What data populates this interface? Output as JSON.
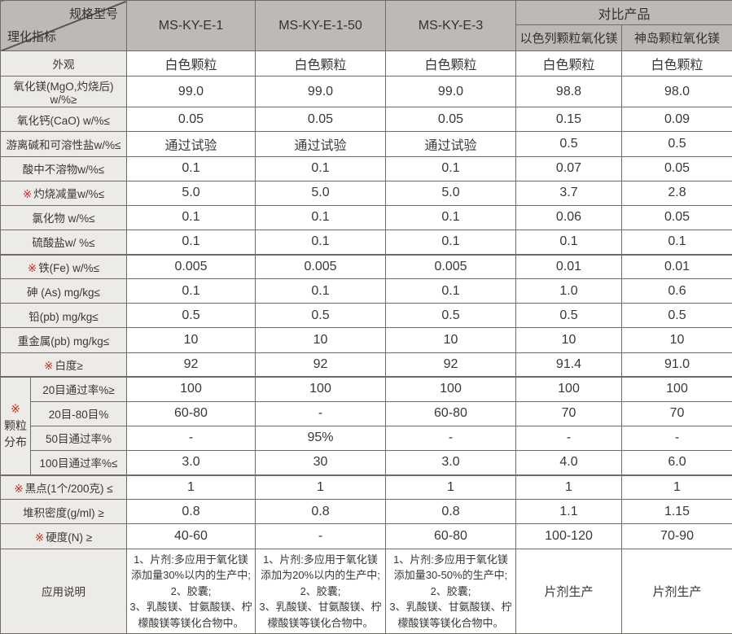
{
  "table": {
    "corner": {
      "top_label": "规格型号",
      "bottom_label": "理化指标"
    },
    "product_columns": [
      "MS-KY-E-1",
      "MS-KY-E-1-50",
      "MS-KY-E-3"
    ],
    "compare_group_label": "对比产品",
    "compare_columns": [
      "以色列颗粒氧化镁",
      "神岛颗粒氧化镁"
    ],
    "granule_group": {
      "marker": "※",
      "lines": [
        "颗粒",
        "分布"
      ]
    },
    "rows": [
      {
        "marker": "",
        "label": "外观",
        "appearance": true,
        "values": [
          "白色颗粒",
          "白色颗粒",
          "白色颗粒",
          "白色颗粒",
          "白色颗粒"
        ]
      },
      {
        "marker": "",
        "label": "氧化镁(MgO,灼烧后) w/%≥",
        "values": [
          "99.0",
          "99.0",
          "99.0",
          "98.8",
          "98.0"
        ]
      },
      {
        "marker": "",
        "label": "氧化钙(CaO) w/%≤",
        "values": [
          "0.05",
          "0.05",
          "0.05",
          "0.15",
          "0.09"
        ]
      },
      {
        "marker": "",
        "label": "游离碱和可溶性盐w/%≤",
        "values": [
          "通过试验",
          "通过试验",
          "通过试验",
          "0.5",
          "0.5"
        ]
      },
      {
        "marker": "",
        "label": "酸中不溶物w/%≤",
        "values": [
          "0.1",
          "0.1",
          "0.1",
          "0.07",
          "0.05"
        ]
      },
      {
        "marker": "※",
        "label": "灼烧减量w/%≤",
        "values": [
          "5.0",
          "5.0",
          "5.0",
          "3.7",
          "2.8"
        ]
      },
      {
        "marker": "",
        "label": "氯化物 w/%≤",
        "values": [
          "0.1",
          "0.1",
          "0.1",
          "0.06",
          "0.05"
        ]
      },
      {
        "marker": "",
        "label": "硫酸盐w/ %≤",
        "values": [
          "0.1",
          "0.1",
          "0.1",
          "0.1",
          "0.1"
        ]
      },
      {
        "marker": "※",
        "label": "铁(Fe) w/%≤",
        "thick_top": true,
        "values": [
          "0.005",
          "0.005",
          "0.005",
          "0.01",
          "0.01"
        ]
      },
      {
        "marker": "",
        "label": "砷 (As) mg/kg≤",
        "values": [
          "0.1",
          "0.1",
          "0.1",
          "1.0",
          "0.6"
        ]
      },
      {
        "marker": "",
        "label": "铅(pb) mg/kg≤",
        "values": [
          "0.5",
          "0.5",
          "0.5",
          "0.5",
          "0.5"
        ]
      },
      {
        "marker": "",
        "label": "重金属(pb) mg/kg≤",
        "values": [
          "10",
          "10",
          "10",
          "10",
          "10"
        ]
      },
      {
        "marker": "※",
        "label": "白度≥",
        "values": [
          "92",
          "92",
          "92",
          "91.4",
          "91.0"
        ]
      },
      {
        "marker": "",
        "label": "20目通过率%≥",
        "in_group": true,
        "group_start": true,
        "thick_top": true,
        "values": [
          "100",
          "100",
          "100",
          "100",
          "100"
        ]
      },
      {
        "marker": "",
        "label": "20目-80目%",
        "in_group": true,
        "values": [
          "60-80",
          "-",
          "60-80",
          "70",
          "70"
        ]
      },
      {
        "marker": "",
        "label": "50目通过率%",
        "in_group": true,
        "values": [
          "-",
          "95%",
          "-",
          "-",
          "-"
        ]
      },
      {
        "marker": "",
        "label": "100目通过率%≤",
        "in_group": true,
        "values": [
          "3.0",
          "30",
          "3.0",
          "4.0",
          "6.0"
        ]
      },
      {
        "marker": "※",
        "label": "黑点(1个/200克) ≤",
        "thick_top": true,
        "values": [
          "1",
          "1",
          "1",
          "1",
          "1"
        ]
      },
      {
        "marker": "",
        "label": "堆积密度(g/ml) ≥",
        "values": [
          "0.8",
          "0.8",
          "0.8",
          "1.1",
          "1.15"
        ]
      },
      {
        "marker": "※",
        "label": "硬度(N) ≥",
        "values": [
          "40-60",
          "-",
          "60-80",
          "100-120",
          "70-90"
        ]
      },
      {
        "marker": "",
        "label": "应用说明",
        "type": "app",
        "values": [
          "1、片剂:多应用于氧化镁添加量30%以内的生产中;\n2、胶囊;\n3、乳酸镁、甘氨酸镁、柠檬酸镁等镁化合物中。",
          "1、片剂:多应用于氧化镁添加为20%以内的生产中;\n2、胶囊;\n3、乳酸镁、甘氨酸镁、柠檬酸镁等镁化合物中。",
          "1、片剂:多应用于氧化镁添加量30-50%的生产中;\n2、胶囊;\n3、乳酸镁、甘氨酸镁、柠檬酸镁等镁化合物中。",
          "片剂生产",
          "片剂生产"
        ]
      }
    ],
    "colors": {
      "header_bg": "#bcb9b6",
      "label_bg": "#edebe8",
      "border": "#6e6a66",
      "text": "#3b3734",
      "accent_red": "#c5281c"
    }
  }
}
